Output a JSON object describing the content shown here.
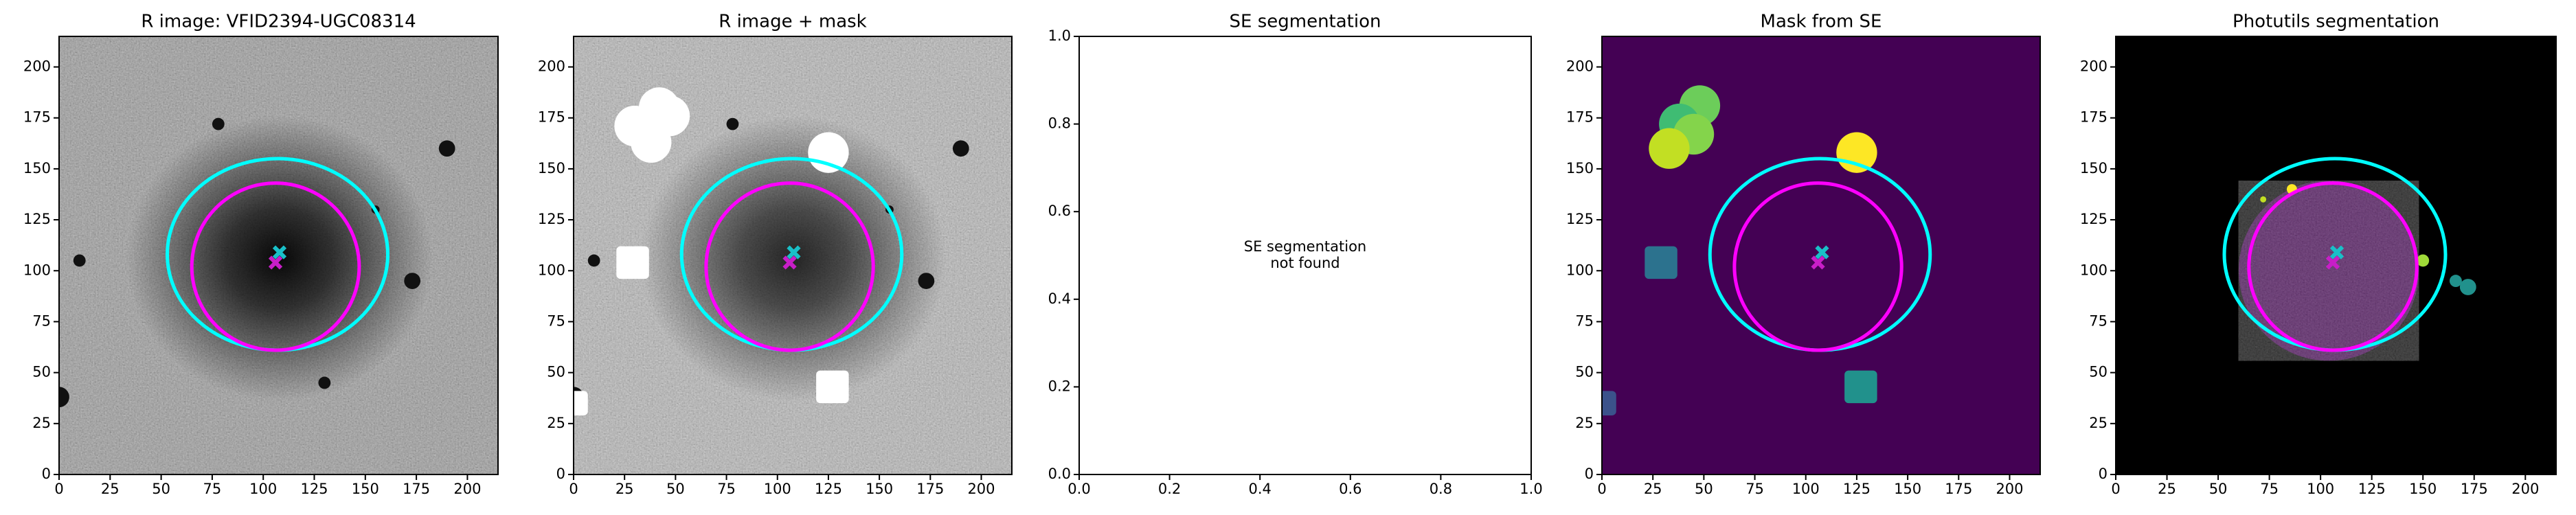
{
  "chart_data": [
    {
      "type": "image",
      "title": "R image: VFID2394-UGC08314",
      "style": "gray",
      "xlim": [
        0,
        215
      ],
      "ylim": [
        0,
        215
      ],
      "xticks": [
        0,
        25,
        50,
        75,
        100,
        125,
        150,
        175,
        200
      ],
      "yticks": [
        0,
        25,
        50,
        75,
        100,
        125,
        150,
        175,
        200
      ],
      "ellipses": [
        {
          "cx": 107,
          "cy": 108,
          "rx": 54,
          "ry": 47,
          "color": "#00ffff"
        },
        {
          "cx": 106,
          "cy": 102,
          "rx": 41,
          "ry": 41,
          "color": "#ff00ff"
        }
      ],
      "markers": [
        {
          "x": 108,
          "y": 109,
          "color": "#19c0c8"
        },
        {
          "x": 106,
          "y": 104,
          "color": "#c81ec8"
        }
      ]
    },
    {
      "type": "image",
      "title": "R image + mask",
      "style": "masked",
      "xlim": [
        0,
        215
      ],
      "ylim": [
        0,
        215
      ],
      "xticks": [
        0,
        25,
        50,
        75,
        100,
        125,
        150,
        175,
        200
      ],
      "yticks": [
        0,
        25,
        50,
        75,
        100,
        125,
        150,
        175,
        200
      ],
      "ellipses": [
        {
          "cx": 107,
          "cy": 108,
          "rx": 54,
          "ry": 47,
          "color": "#00ffff"
        },
        {
          "cx": 106,
          "cy": 102,
          "rx": 41,
          "ry": 41,
          "color": "#ff00ff"
        }
      ],
      "markers": [
        {
          "x": 108,
          "y": 109,
          "color": "#19c0c8"
        },
        {
          "x": 106,
          "y": 104,
          "color": "#c81ec8"
        }
      ]
    },
    {
      "type": "empty",
      "title": "SE segmentation",
      "note": [
        "SE segmentation",
        "not found"
      ],
      "xlim": [
        0,
        1
      ],
      "ylim": [
        0,
        1
      ],
      "xticks": [
        {
          "value": 0,
          "label": "0.0"
        },
        {
          "value": 0.2,
          "label": "0.2"
        },
        {
          "value": 0.4,
          "label": "0.4"
        },
        {
          "value": 0.6,
          "label": "0.6"
        },
        {
          "value": 0.8,
          "label": "0.8"
        },
        {
          "value": 1,
          "label": "1.0"
        }
      ],
      "yticks": [
        {
          "value": 0,
          "label": "0.0"
        },
        {
          "value": 0.2,
          "label": "0.2"
        },
        {
          "value": 0.4,
          "label": "0.4"
        },
        {
          "value": 0.6,
          "label": "0.6"
        },
        {
          "value": 0.8,
          "label": "0.8"
        },
        {
          "value": 1,
          "label": "1.0"
        }
      ]
    },
    {
      "type": "image",
      "title": "Mask from SE",
      "style": "labels",
      "xlim": [
        0,
        215
      ],
      "ylim": [
        0,
        215
      ],
      "xticks": [
        0,
        25,
        50,
        75,
        100,
        125,
        150,
        175,
        200
      ],
      "yticks": [
        0,
        25,
        50,
        75,
        100,
        125,
        150,
        175,
        200
      ],
      "ellipses": [
        {
          "cx": 107,
          "cy": 108,
          "rx": 54,
          "ry": 47,
          "color": "#00ffff"
        },
        {
          "cx": 106,
          "cy": 102,
          "rx": 41,
          "ry": 41,
          "color": "#ff00ff"
        }
      ],
      "markers": [
        {
          "x": 108,
          "y": 109,
          "color": "#19c0c8"
        },
        {
          "x": 106,
          "y": 104,
          "color": "#c81ec8"
        }
      ]
    },
    {
      "type": "image",
      "title": "Photutils segmentation",
      "style": "photutils",
      "xlim": [
        0,
        215
      ],
      "ylim": [
        0,
        215
      ],
      "xticks": [
        0,
        25,
        50,
        75,
        100,
        125,
        150,
        175,
        200
      ],
      "yticks": [
        0,
        25,
        50,
        75,
        100,
        125,
        150,
        175,
        200
      ],
      "ellipses": [
        {
          "cx": 107,
          "cy": 108,
          "rx": 54,
          "ry": 47,
          "color": "#00ffff"
        },
        {
          "cx": 106,
          "cy": 102,
          "rx": 41,
          "ry": 41,
          "color": "#ff00ff"
        }
      ],
      "markers": [
        {
          "x": 108,
          "y": 109,
          "color": "#19c0c8"
        },
        {
          "x": 106,
          "y": 104,
          "color": "#c81ec8"
        }
      ]
    }
  ]
}
